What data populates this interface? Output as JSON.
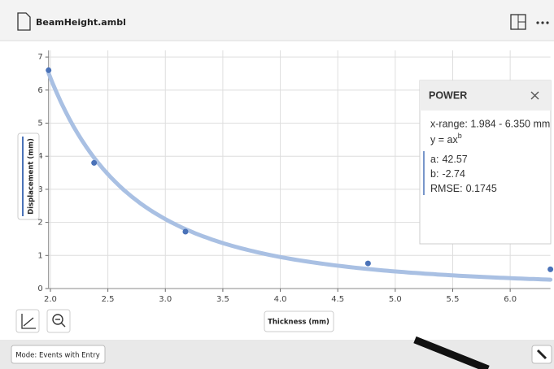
{
  "header": {
    "filename": "BeamHeight.ambl"
  },
  "chart_data": {
    "type": "scatter",
    "x_label": "Thickness (mm)",
    "y_label": "Displacement (mm)",
    "x": [
      1.984,
      2.38,
      3.175,
      4.763,
      6.35
    ],
    "values": [
      6.6,
      3.8,
      1.72,
      0.76,
      0.58
    ],
    "color": "#4a72b8",
    "xlim": [
      1.984,
      6.35
    ],
    "ylim": [
      0,
      7.2
    ],
    "xticks": [
      {
        "value": 2,
        "label": "2.0"
      },
      {
        "value": 2.5,
        "label": "2.5"
      },
      {
        "value": 3,
        "label": "3.0"
      },
      {
        "value": 3.5,
        "label": "3.5"
      },
      {
        "value": 4,
        "label": "4.0"
      },
      {
        "value": 4.5,
        "label": "4.5"
      },
      {
        "value": 5,
        "label": "5.0"
      },
      {
        "value": 5.5,
        "label": "5.5"
      },
      {
        "value": 6,
        "label": "6.0"
      }
    ],
    "yticks": [
      0,
      1,
      2,
      3,
      4,
      5,
      6,
      7
    ],
    "grid": true,
    "fit_color": "#a9c0e3"
  },
  "fit": {
    "title": "POWER",
    "range": "x-range: 1.984 - 6.350 mm",
    "equation": "y = ax",
    "equation_exp": "b",
    "params": [
      {
        "name": "a:",
        "value": 42.57
      },
      {
        "name": "b:",
        "value": -2.74
      },
      {
        "name": "RMSE:",
        "value": 0.1745
      }
    ]
  },
  "footer": {
    "mode": "Mode: Events with Entry"
  }
}
